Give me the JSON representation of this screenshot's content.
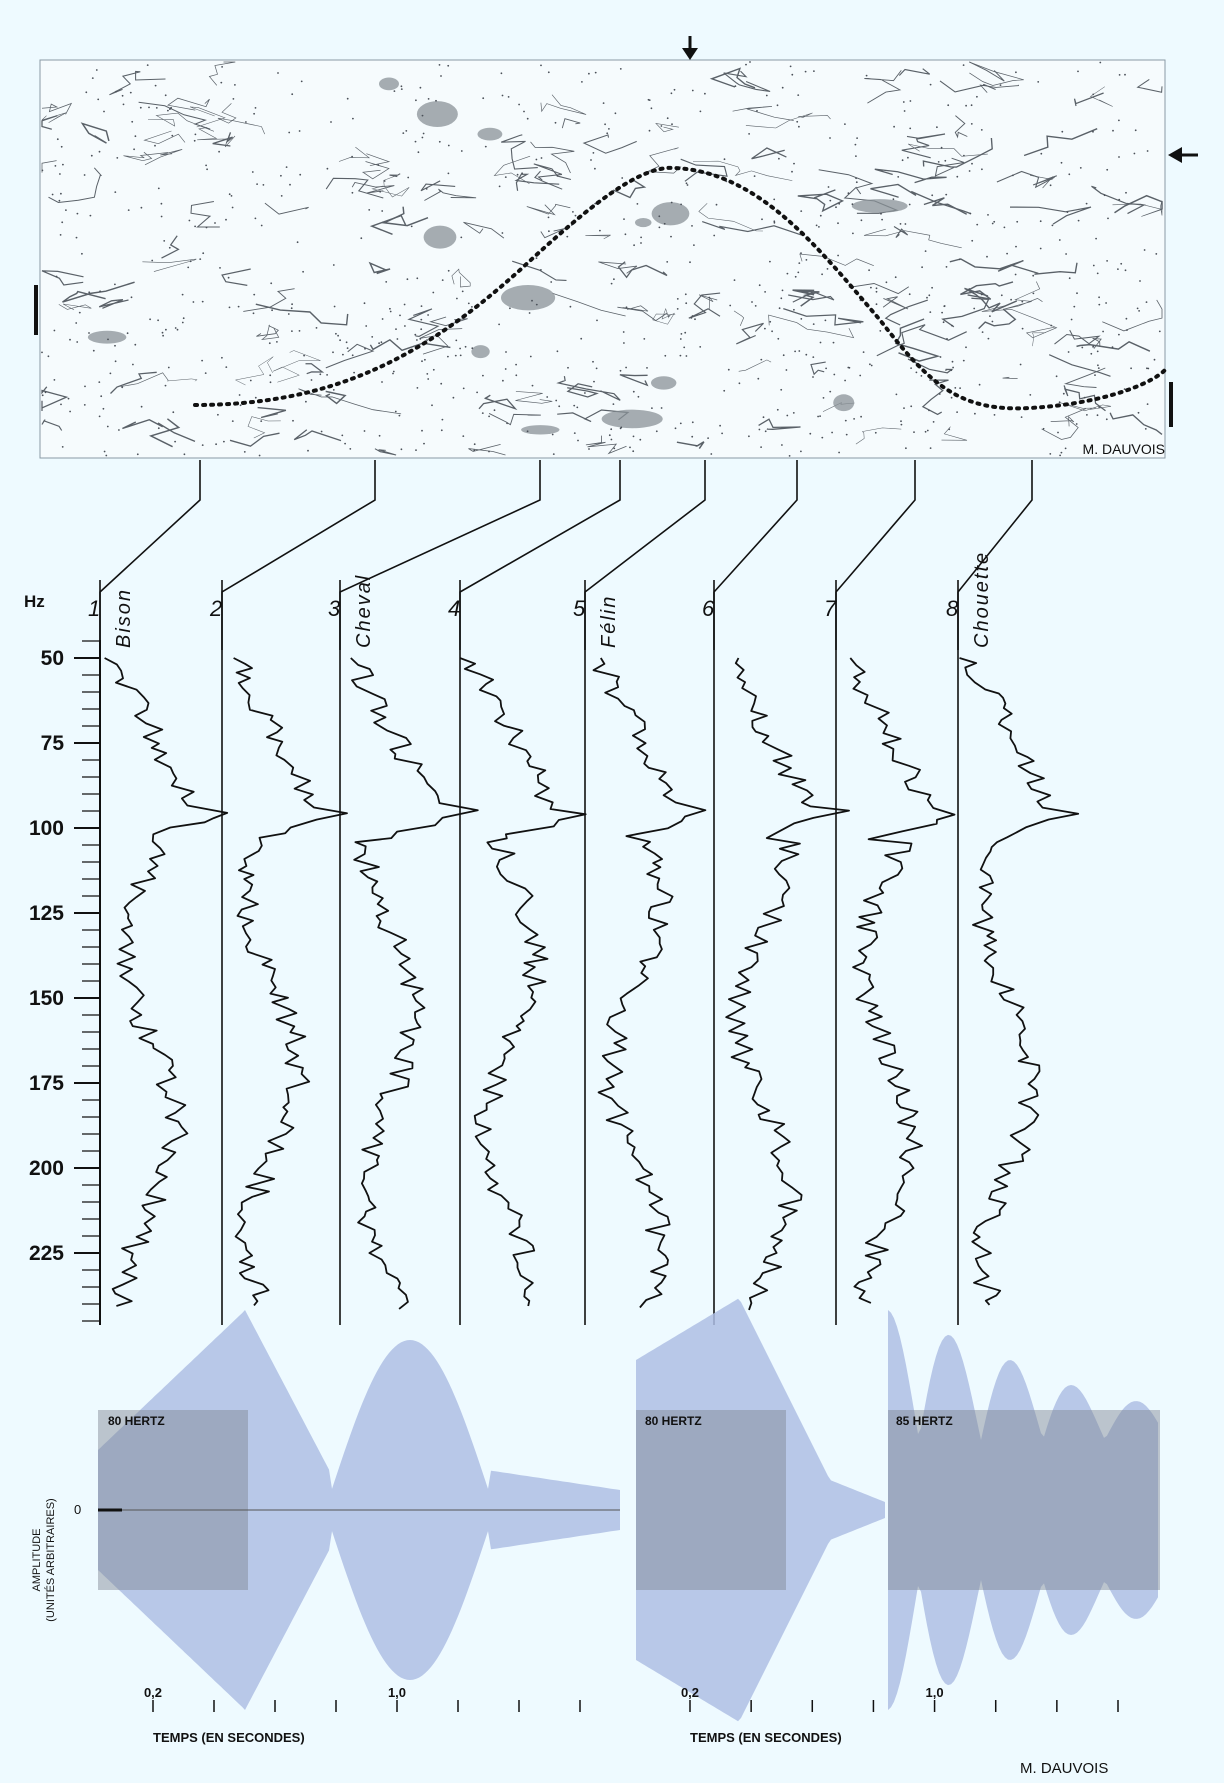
{
  "map": {
    "credit": "M. DAUVOIS"
  },
  "frequency_axis": {
    "unit": "Hz",
    "ticks": [
      "50",
      "75",
      "100",
      "125",
      "150",
      "175",
      "200",
      "225"
    ]
  },
  "traces": [
    {
      "number": "1",
      "name": "Bison"
    },
    {
      "number": "2",
      "name": ""
    },
    {
      "number": "3",
      "name": "Cheval"
    },
    {
      "number": "4",
      "name": ""
    },
    {
      "number": "5",
      "name": "Félin"
    },
    {
      "number": "6",
      "name": ""
    },
    {
      "number": "7",
      "name": ""
    },
    {
      "number": "8",
      "name": "Chouette"
    }
  ],
  "waveforms": {
    "ylabel_1": "AMPLITUDE",
    "ylabel_2": "(UNITÉS ARBITRAIRES)",
    "zero_label": "0",
    "left": {
      "box_label": "80 HERTZ",
      "tick_a": "0,2",
      "tick_b": "1,0",
      "xlabel": "TEMPS (EN SECONDES)"
    },
    "right": {
      "box_label_1": "80 HERTZ",
      "box_label_2": "85 HERTZ",
      "tick_a": "0,2",
      "tick_b": "1,0",
      "xlabel": "TEMPS (EN SECONDES)"
    },
    "credit": "M. DAUVOIS"
  },
  "colors": {
    "background": "#eefaff",
    "ink": "#111111",
    "wave": "#aebee4",
    "box": "#7d8290"
  }
}
